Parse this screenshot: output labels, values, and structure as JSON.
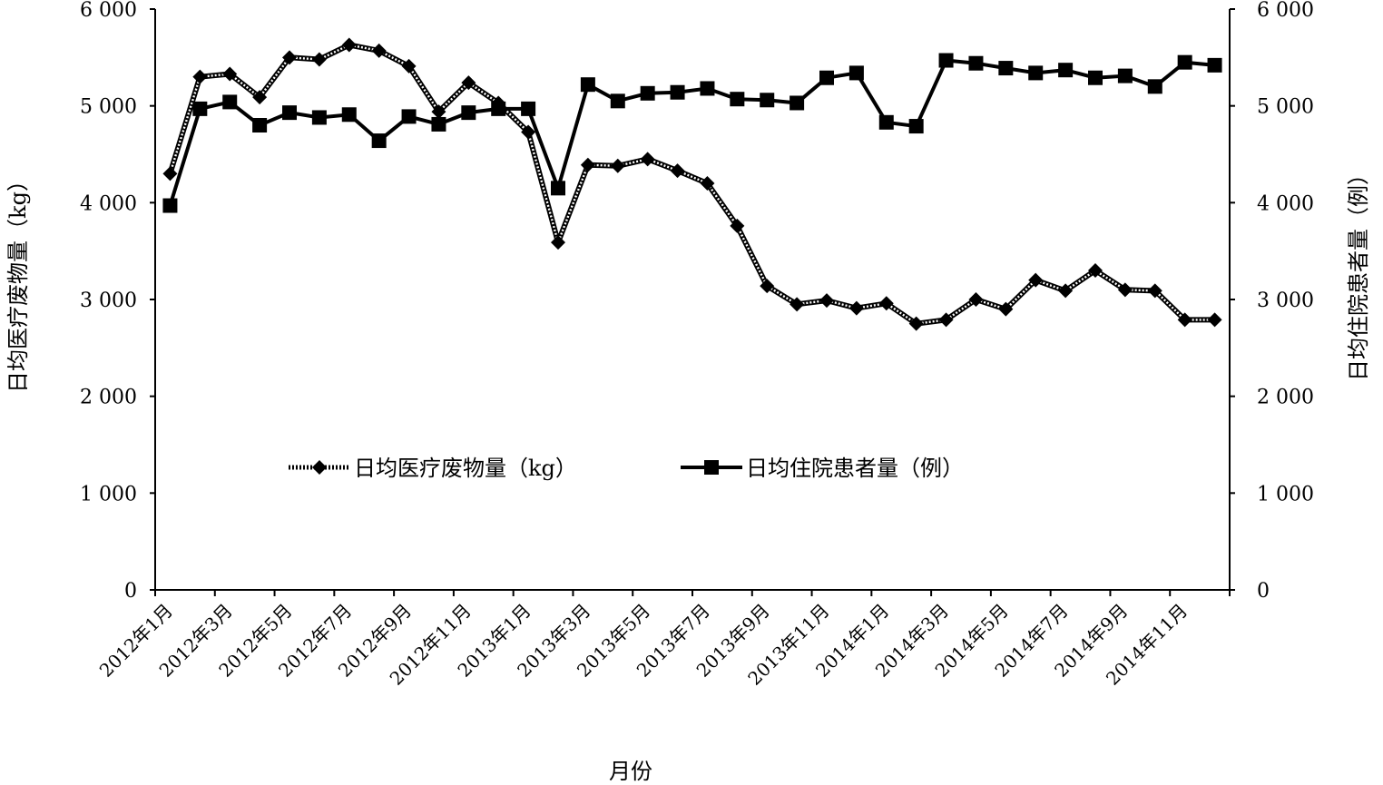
{
  "chart_data": {
    "type": "line",
    "xlabel": "月份",
    "ylabel_left": "日均医疗废物量（kg）",
    "ylabel_right": "日均住院患者量（例）",
    "ylim_left": [
      0,
      6000
    ],
    "ylim_right": [
      0,
      6000
    ],
    "yticks_left": [
      "0",
      "1 000",
      "2 000",
      "3 000",
      "4 000",
      "5 000",
      "6 000"
    ],
    "yticks_right": [
      "0",
      "1 000",
      "2 000",
      "3 000",
      "4 000",
      "5 000",
      "6 000"
    ],
    "x_tick_labels": [
      "2012年1月",
      "2012年3月",
      "2012年5月",
      "2012年7月",
      "2012年9月",
      "2012年11月",
      "2013年1月",
      "2013年3月",
      "2013年5月",
      "2013年7月",
      "2013年9月",
      "2013年11月",
      "2014年1月",
      "2014年3月",
      "2014年5月",
      "2014年7月",
      "2014年9月",
      "2014年11月"
    ],
    "grid": false,
    "legend_position": "center",
    "series": [
      {
        "name": "日均医疗废物量（kg）",
        "axis": "left",
        "style": "dotted",
        "marker": "diamond",
        "color": "#000000",
        "values": [
          4300,
          5300,
          5330,
          5090,
          5500,
          5480,
          5630,
          5570,
          5410,
          4940,
          5240,
          5030,
          4730,
          3590,
          4390,
          4380,
          4450,
          4330,
          4200,
          3760,
          3140,
          2950,
          2990,
          2910,
          2960,
          2750,
          2790,
          3000,
          2900,
          3200,
          3090,
          3300,
          3100,
          3090,
          2790,
          2790
        ]
      },
      {
        "name": "日均住院患者量（例）",
        "axis": "right",
        "style": "solid",
        "marker": "square",
        "color": "#000000",
        "values": [
          3970,
          4970,
          5040,
          4800,
          4930,
          4880,
          4910,
          4640,
          4890,
          4810,
          4930,
          4970,
          4970,
          4150,
          5220,
          5050,
          5130,
          5140,
          5180,
          5070,
          5060,
          5030,
          5290,
          5340,
          4830,
          4790,
          5470,
          5440,
          5390,
          5340,
          5370,
          5290,
          5310,
          5200,
          5450,
          5420
        ]
      }
    ]
  }
}
